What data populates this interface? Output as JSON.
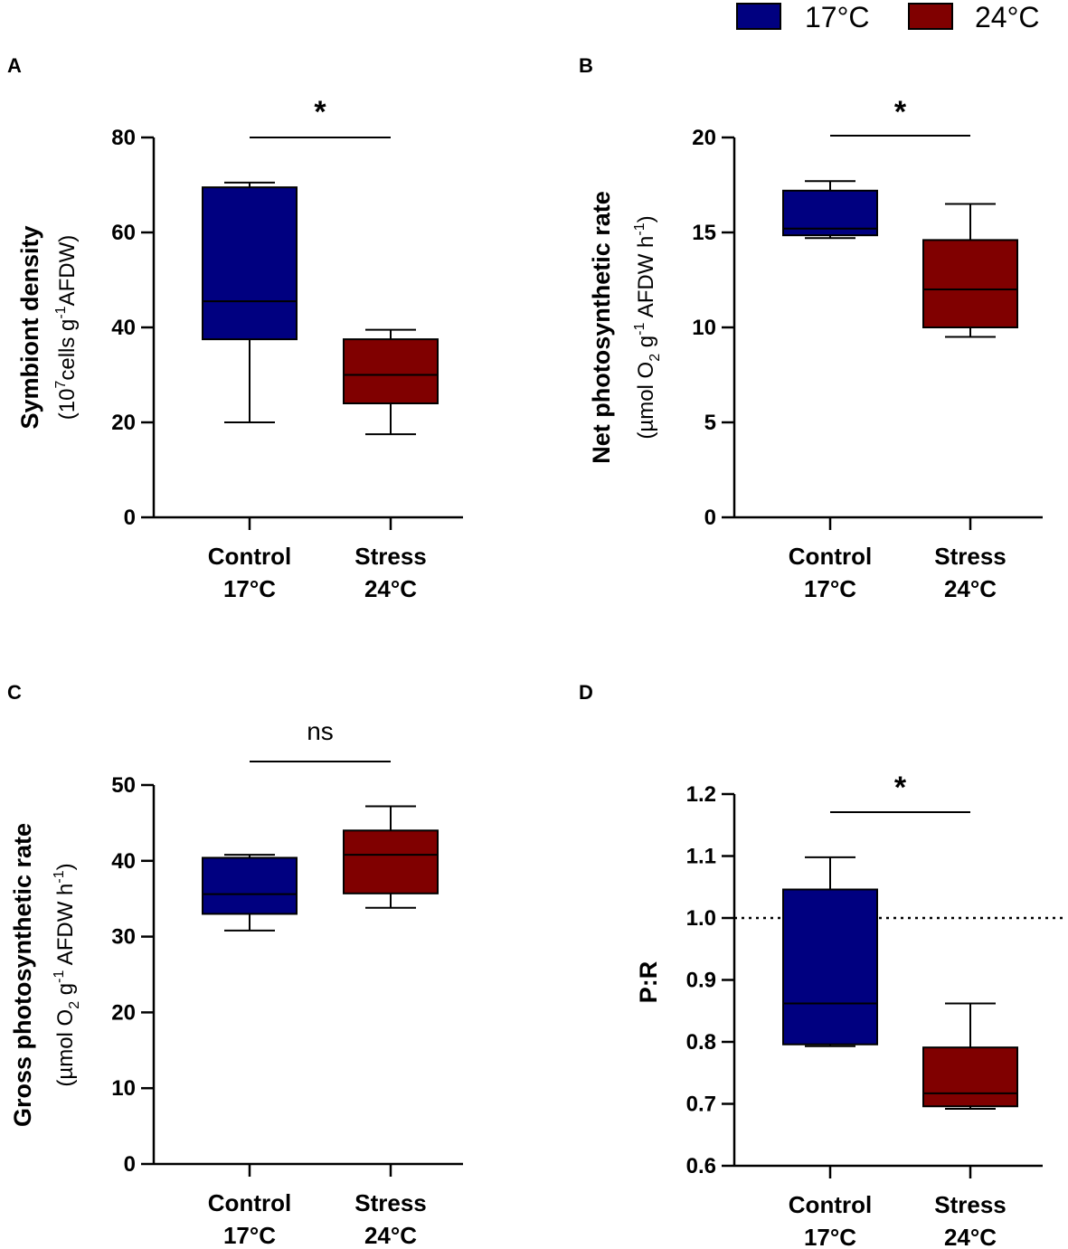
{
  "legend": {
    "items": [
      {
        "label": "17°C",
        "color": "#000080"
      },
      {
        "label": "24°C",
        "color": "#800000"
      }
    ]
  },
  "chart_data": [
    {
      "panel": "A",
      "type": "box",
      "ylabel_main": "Symbiont density",
      "ylabel_unit_parts": [
        "(10",
        "7",
        "cells g",
        "-1",
        "AFDW)"
      ],
      "ylim": [
        0,
        80
      ],
      "yticks": [
        0,
        20,
        40,
        60,
        80
      ],
      "ytick_labels": [
        "0",
        "20",
        "40",
        "60",
        "80"
      ],
      "categories": [
        [
          "Control",
          "17°C"
        ],
        [
          "Stress",
          "24°C"
        ]
      ],
      "boxes": [
        {
          "group": "Control 17°C",
          "color": "#000080",
          "min": 20,
          "q1": 37.5,
          "median": 45.5,
          "q3": 69.5,
          "max": 70.5
        },
        {
          "group": "Stress 24°C",
          "color": "#800000",
          "min": 17.5,
          "q1": 24,
          "median": 30,
          "q3": 37.5,
          "max": 39.5
        }
      ],
      "significance": "*",
      "reference_line": null
    },
    {
      "panel": "B",
      "type": "box",
      "ylabel_main": "Net photosynthetic rate",
      "ylabel_unit_parts": [
        "(µmol O",
        "2",
        " g",
        "-1",
        " AFDW h",
        "-1",
        ")"
      ],
      "ylim": [
        0,
        20
      ],
      "yticks": [
        0,
        5,
        10,
        15,
        20
      ],
      "ytick_labels": [
        "0",
        "5",
        "10",
        "15",
        "20"
      ],
      "categories": [
        [
          "Control",
          "17°C"
        ],
        [
          "Stress",
          "24°C"
        ]
      ],
      "boxes": [
        {
          "group": "Control 17°C",
          "color": "#000080",
          "min": 14.7,
          "q1": 14.85,
          "median": 15.2,
          "q3": 17.2,
          "max": 17.7
        },
        {
          "group": "Stress 24°C",
          "color": "#800000",
          "min": 9.5,
          "q1": 10,
          "median": 12,
          "q3": 14.6,
          "max": 16.5
        }
      ],
      "significance": "*",
      "reference_line": null
    },
    {
      "panel": "C",
      "type": "box",
      "ylabel_main": "Gross photosynthetic rate",
      "ylabel_unit_parts": [
        "(µmol O",
        "2",
        " g",
        "-1",
        " AFDW h",
        "-1",
        ")"
      ],
      "ylim": [
        0,
        50
      ],
      "yticks": [
        0,
        10,
        20,
        30,
        40,
        50
      ],
      "ytick_labels": [
        "0",
        "10",
        "20",
        "30",
        "40",
        "50"
      ],
      "categories": [
        [
          "Control",
          "17°C"
        ],
        [
          "Stress",
          "24°C"
        ]
      ],
      "boxes": [
        {
          "group": "Control 17°C",
          "color": "#000080",
          "min": 30.8,
          "q1": 33,
          "median": 35.6,
          "q3": 40.4,
          "max": 40.8
        },
        {
          "group": "Stress 24°C",
          "color": "#800000",
          "min": 33.8,
          "q1": 35.7,
          "median": 40.8,
          "q3": 44,
          "max": 47.2
        }
      ],
      "significance": "ns",
      "reference_line": null
    },
    {
      "panel": "D",
      "type": "box",
      "ylabel_main": "P:R",
      "ylabel_unit_parts": [],
      "ylim": [
        0.6,
        1.2
      ],
      "yticks": [
        0.6,
        0.7,
        0.8,
        0.9,
        1.0,
        1.1,
        1.2
      ],
      "ytick_labels": [
        "0.6",
        "0.7",
        "0.8",
        "0.9",
        "1.0",
        "1.1",
        "1.2"
      ],
      "categories": [
        [
          "Control",
          "17°C"
        ],
        [
          "Stress",
          "24°C"
        ]
      ],
      "boxes": [
        {
          "group": "Control 17°C",
          "color": "#000080",
          "min": 0.793,
          "q1": 0.796,
          "median": 0.862,
          "q3": 1.046,
          "max": 1.098
        },
        {
          "group": "Stress 24°C",
          "color": "#800000",
          "min": 0.692,
          "q1": 0.696,
          "median": 0.717,
          "q3": 0.791,
          "max": 0.862
        }
      ],
      "significance": "*",
      "reference_line": 1.0
    }
  ]
}
